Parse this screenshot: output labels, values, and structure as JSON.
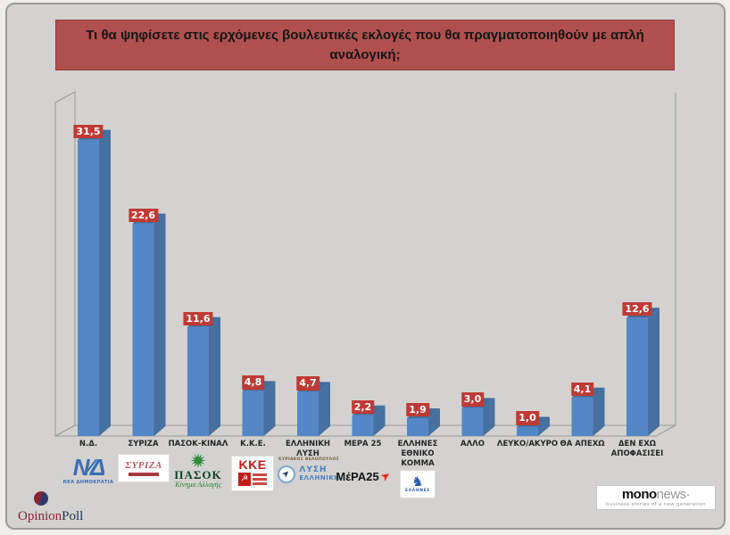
{
  "title": "Τι θα ψηφίσετε στις ερχόμενες βουλευτικές εκλογές που θα πραγματοποιηθούν με απλή αναλογική;",
  "chart_data": {
    "type": "bar",
    "style": "3d-column",
    "title": "Τι θα ψηφίσετε στις ερχόμενες βουλευτικές εκλογές που θα πραγματοποιηθούν με απλή αναλογική;",
    "categories": [
      "Ν.Δ.",
      "ΣΥΡΙΖΑ",
      "ΠΑΣΟΚ-ΚΙΝΑΛ",
      "Κ.Κ.Ε.",
      "ΕΛΛΗΝΙΚΗ\nΛΥΣΗ",
      "ΜΕΡΑ 25",
      "ΕΛΛΗΝΕΣ\nΕΘΝΙΚΟ\nΚΟΜΜΑ",
      "ΑΛΛΟ",
      "ΛΕΥΚΟ/ΑΚΥΡΟ",
      "ΘΑ ΑΠΕΧΩ",
      "ΔΕΝ ΕΧΩ\nΑΠΟΦΑΣΙΣΕΙ"
    ],
    "values": [
      31.5,
      22.6,
      11.6,
      4.8,
      4.7,
      2.2,
      1.9,
      3.0,
      1.0,
      4.1,
      12.6
    ],
    "value_labels": [
      "31,5",
      "22,6",
      "11,6",
      "4,8",
      "4,7",
      "2,2",
      "1,9",
      "3,0",
      "1,0",
      "4,1",
      "12,6"
    ],
    "unit": "%",
    "ylim": [
      0,
      35
    ],
    "grid": false,
    "legend": false,
    "bar_color": "#5587c7",
    "bar_side_color": "#46709f",
    "bar_top_color": "#436d9d",
    "value_label_bg": "#bf3a35",
    "value_label_color": "#ffffff",
    "wall_line_color": "#9a9a9a",
    "title_bg": "#b0504e"
  },
  "logos": {
    "nd": {
      "mark": "Ν∕Δ",
      "caption": "ΝΕΑ ΔΗΜΟΚΡΑΤΙΑ"
    },
    "syriza": {
      "text": "ΣΥΡΙΖΑ"
    },
    "pasok": {
      "text": "ΠΑΣΟΚ",
      "subtext": "Κίνημα Αλλαγής"
    },
    "kke": {
      "text": "ΚΚΕ",
      "emblem": "☭"
    },
    "elliniki_lysi": {
      "leader": "ΚΥΡΙΑΚΟΣ ΒΕΛΟΠΟΥΛΟΣ",
      "line1": "ΛΥΣΗ",
      "line2": "ΕΛΛΗΝΙΚΗ"
    },
    "mera25": {
      "text": "ΜέΡΑ25",
      "bird": "➤"
    },
    "ellines": {
      "glyph": "♞",
      "caption": "ΕΛΛΗΝΕΣ"
    }
  },
  "footer": {
    "opinionpoll": {
      "part1": "Opinion",
      "part2": "Poll"
    },
    "mononews": {
      "part1": "mono",
      "part2": "news·",
      "tagline": "business stories of a new generation"
    }
  }
}
